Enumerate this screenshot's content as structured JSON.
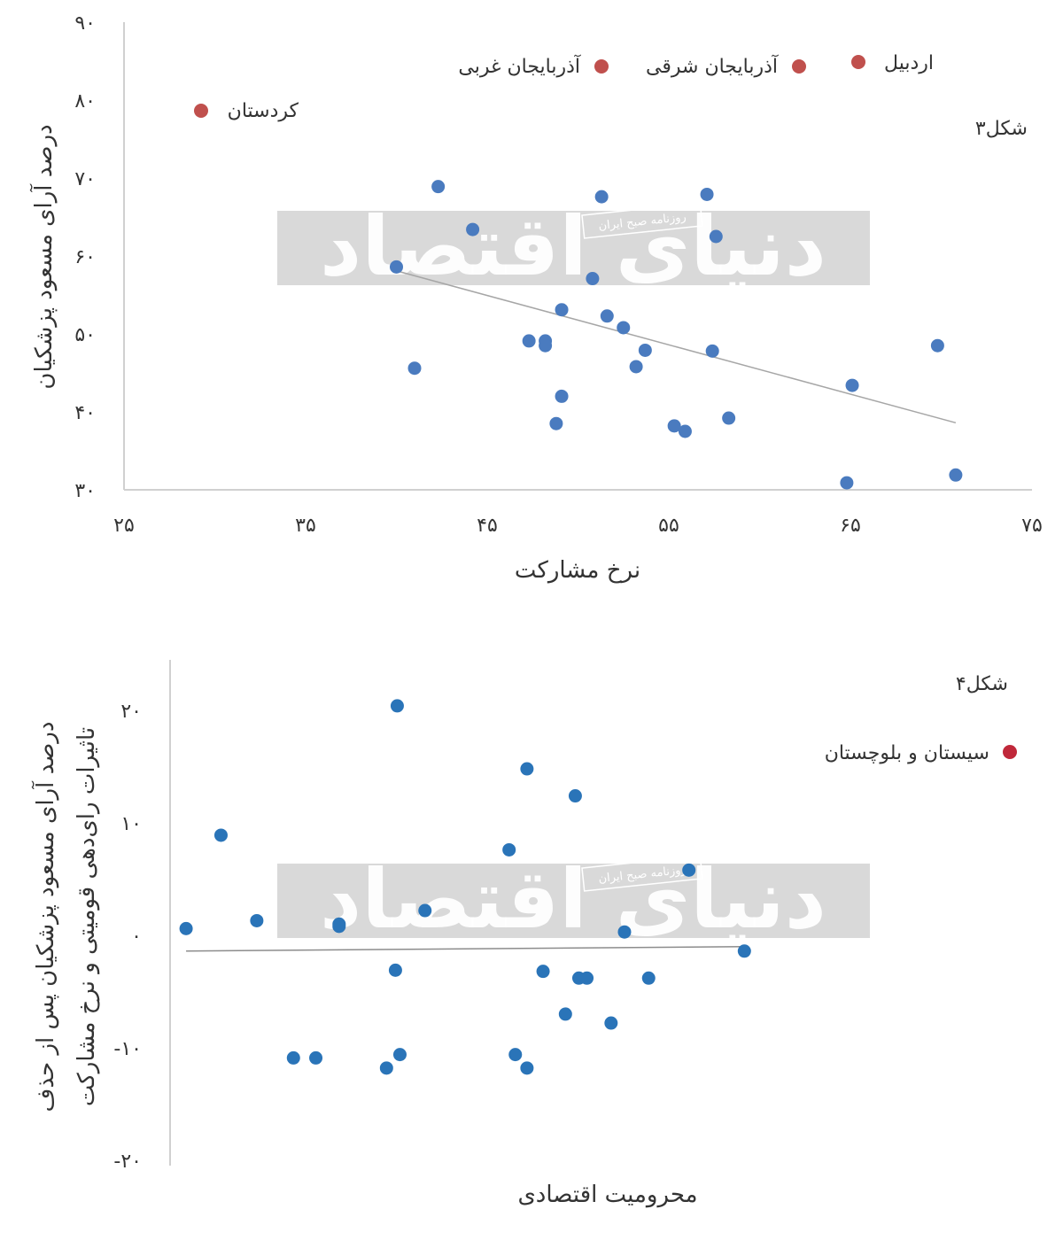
{
  "watermark": {
    "brand": "دنیای اقتصاد",
    "subtitle": "روزنامه صبح ایران"
  },
  "colors": {
    "point": "#4a7bbf",
    "point2": "#2a74b8",
    "highlight": "#c0504d",
    "trend": "#a6a6a6",
    "axis": "#d0d0d0",
    "watermark": "#d9d9d9"
  },
  "chart_data": [
    {
      "type": "scatter",
      "figure_label": "شکل۳",
      "xlabel": "نرخ مشارکت",
      "ylabel": "درصد آرای مسعود پزشکیان",
      "xlim": [
        25,
        75
      ],
      "ylim": [
        30,
        90
      ],
      "x_ticks": [
        25,
        35,
        45,
        55,
        65,
        75
      ],
      "y_ticks": [
        30,
        40,
        50,
        60,
        70,
        80,
        90
      ],
      "x_tick_labels": [
        "۲۵",
        "۳۵",
        "۴۵",
        "۵۵",
        "۶۵",
        "۷۵"
      ],
      "y_tick_labels": [
        "۳۰",
        "۴۰",
        "۵۰",
        "۶۰",
        "۷۰",
        "۸۰",
        "۹۰"
      ],
      "points": [
        {
          "x": 40.0,
          "y": 58.6
        },
        {
          "x": 42.3,
          "y": 68.9
        },
        {
          "x": 44.2,
          "y": 63.4
        },
        {
          "x": 41.0,
          "y": 45.6
        },
        {
          "x": 47.3,
          "y": 49.1
        },
        {
          "x": 48.2,
          "y": 49.1
        },
        {
          "x": 48.2,
          "y": 48.5
        },
        {
          "x": 49.1,
          "y": 53.1
        },
        {
          "x": 51.3,
          "y": 67.6
        },
        {
          "x": 50.8,
          "y": 57.1
        },
        {
          "x": 51.6,
          "y": 52.3
        },
        {
          "x": 52.5,
          "y": 50.8
        },
        {
          "x": 53.2,
          "y": 45.8
        },
        {
          "x": 53.7,
          "y": 47.9
        },
        {
          "x": 49.1,
          "y": 42.0
        },
        {
          "x": 48.8,
          "y": 38.5
        },
        {
          "x": 55.3,
          "y": 38.2
        },
        {
          "x": 55.9,
          "y": 37.5
        },
        {
          "x": 57.1,
          "y": 67.9
        },
        {
          "x": 57.6,
          "y": 62.5
        },
        {
          "x": 57.4,
          "y": 47.8
        },
        {
          "x": 58.3,
          "y": 39.2
        },
        {
          "x": 64.8,
          "y": 30.9
        },
        {
          "x": 65.1,
          "y": 43.4
        },
        {
          "x": 69.8,
          "y": 48.5
        },
        {
          "x": 70.8,
          "y": 31.9
        }
      ],
      "trendline": {
        "x": [
          40.0,
          70.8
        ],
        "y": [
          58.1,
          38.6
        ]
      },
      "highlights": [
        {
          "label": "اردبیل"
        },
        {
          "label": "آذربایجان شرقی"
        },
        {
          "label": "آذربایجان غربی"
        },
        {
          "label": "کردستان"
        }
      ]
    },
    {
      "type": "scatter",
      "figure_label": "شکل۴",
      "xlabel": "محرومیت اقتصادی",
      "ylabel": "درصد آرای مسعود پزشکیان پس از حذف",
      "ylabel2": "تاثیرات رای‌دهی قومیتی و نرخ مشارکت",
      "xlim": [
        0,
        100
      ],
      "ylim": [
        -20,
        20
      ],
      "y_ticks": [
        -20,
        -10,
        0,
        10,
        20
      ],
      "y_tick_labels": [
        "-۲۰",
        "-۱۰",
        "۰",
        "۱۰",
        "۲۰"
      ],
      "points": [
        {
          "x": 0.8,
          "y": 0.6
        },
        {
          "x": 4.7,
          "y": 8.9
        },
        {
          "x": 8.7,
          "y": 1.3
        },
        {
          "x": 12.8,
          "y": -10.9
        },
        {
          "x": 15.3,
          "y": -10.9
        },
        {
          "x": 17.9,
          "y": 1.0
        },
        {
          "x": 17.9,
          "y": 0.8
        },
        {
          "x": 23.2,
          "y": -11.8
        },
        {
          "x": 24.2,
          "y": -3.1
        },
        {
          "x": 24.4,
          "y": 20.4
        },
        {
          "x": 24.7,
          "y": -10.6
        },
        {
          "x": 27.5,
          "y": 2.2
        },
        {
          "x": 36.9,
          "y": 7.6
        },
        {
          "x": 37.6,
          "y": -10.6
        },
        {
          "x": 38.9,
          "y": 14.8
        },
        {
          "x": 38.9,
          "y": -11.8
        },
        {
          "x": 40.7,
          "y": -3.2
        },
        {
          "x": 43.2,
          "y": -7.0
        },
        {
          "x": 44.3,
          "y": 12.4
        },
        {
          "x": 44.7,
          "y": -3.8
        },
        {
          "x": 45.6,
          "y": -3.8
        },
        {
          "x": 48.3,
          "y": -7.8
        },
        {
          "x": 49.8,
          "y": 0.3
        },
        {
          "x": 52.5,
          "y": -3.8
        },
        {
          "x": 57.0,
          "y": 5.8
        },
        {
          "x": 63.2,
          "y": -1.4
        }
      ],
      "trendline": {
        "x": [
          0.8,
          63.2
        ],
        "y": [
          -1.4,
          -1.0
        ]
      },
      "highlights": [
        {
          "label": "سیستان و بلوچستان"
        }
      ]
    }
  ]
}
